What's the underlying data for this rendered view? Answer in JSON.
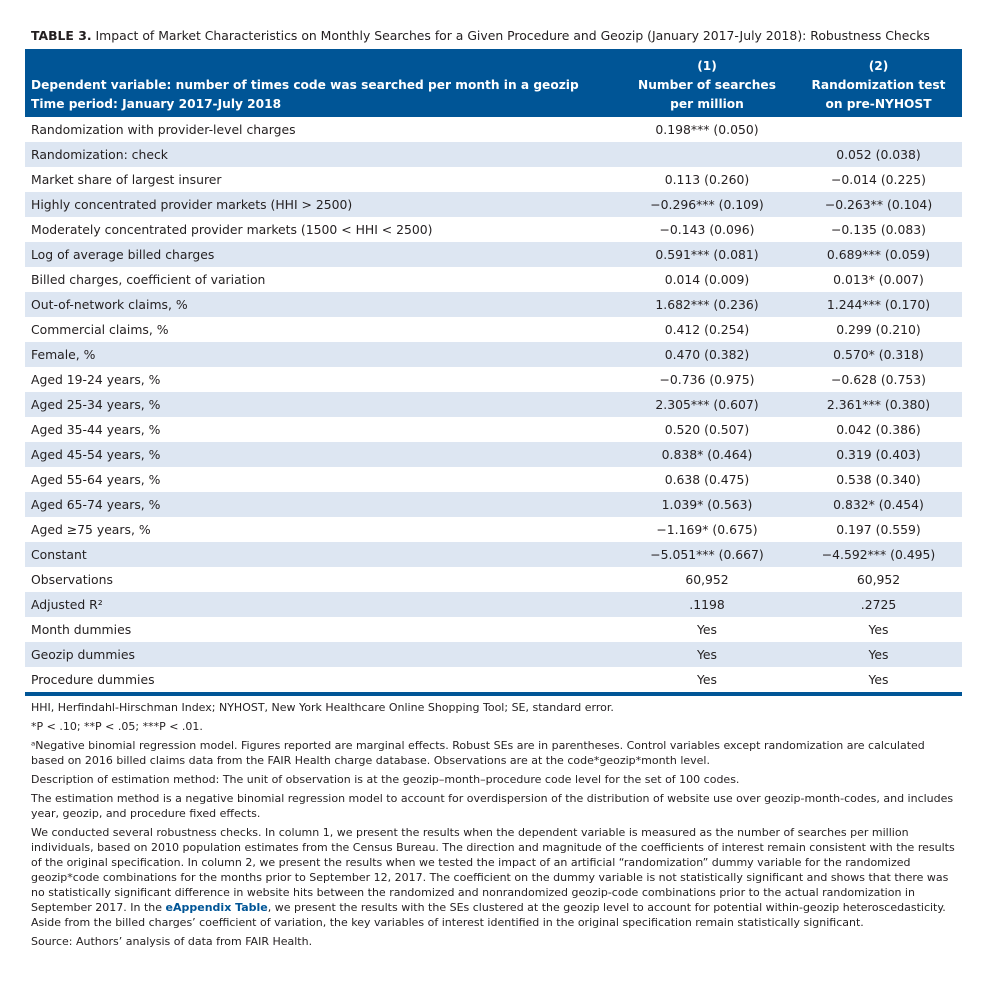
{
  "caption": {
    "label": "TABLE 3.",
    "text": "Impact of Market Characteristics on Monthly Searches for a Given Procedure and Geozip (January 2017-July 2018): Robustness Checks"
  },
  "header": {
    "dependent_variable": "Dependent variable: number of times code was searched per month in a geozip",
    "time_period": "Time period: January 2017-July 2018",
    "columns": [
      {
        "number": "(1)",
        "line1": "Number of searches",
        "line2": "per million"
      },
      {
        "number": "(2)",
        "line1": "Randomization test",
        "line2": "on pre-NYHOST"
      }
    ]
  },
  "rows": [
    {
      "label": "Randomization with provider-level charges",
      "col1": "0.198*** (0.050)",
      "col2": ""
    },
    {
      "label": "Randomization: check",
      "col1": "",
      "col2": "0.052 (0.038)"
    },
    {
      "label": "Market share of largest insurer",
      "col1": "0.113 (0.260)",
      "col2": "−0.014 (0.225)"
    },
    {
      "label": "Highly concentrated provider markets (HHI > 2500)",
      "col1": "−0.296*** (0.109)",
      "col2": "−0.263** (0.104)"
    },
    {
      "label": "Moderately concentrated provider markets (1500 < HHI < 2500)",
      "col1": "−0.143 (0.096)",
      "col2": "−0.135 (0.083)"
    },
    {
      "label": "Log of average billed charges",
      "col1": "0.591*** (0.081)",
      "col2": "0.689*** (0.059)"
    },
    {
      "label": "Billed charges, coefficient of variation",
      "col1": "0.014 (0.009)",
      "col2": "0.013* (0.007)"
    },
    {
      "label": "Out-of-network claims, %",
      "col1": "1.682*** (0.236)",
      "col2": "1.244*** (0.170)"
    },
    {
      "label": "Commercial claims, %",
      "col1": "0.412 (0.254)",
      "col2": "0.299 (0.210)"
    },
    {
      "label": "Female, %",
      "col1": "0.470 (0.382)",
      "col2": "0.570* (0.318)"
    },
    {
      "label": "Aged 19-24 years, %",
      "col1": "−0.736 (0.975)",
      "col2": "−0.628 (0.753)"
    },
    {
      "label": "Aged 25-34 years, %",
      "col1": "2.305*** (0.607)",
      "col2": "2.361*** (0.380)"
    },
    {
      "label": "Aged 35-44 years, %",
      "col1": "0.520 (0.507)",
      "col2": "0.042 (0.386)"
    },
    {
      "label": "Aged 45-54 years, %",
      "col1": "0.838* (0.464)",
      "col2": "0.319 (0.403)"
    },
    {
      "label": "Aged 55-64 years, %",
      "col1": "0.638 (0.475)",
      "col2": "0.538 (0.340)"
    },
    {
      "label": "Aged 65-74 years, %",
      "col1": "1.039* (0.563)",
      "col2": "0.832* (0.454)"
    },
    {
      "label": "Aged ≥75 years, %",
      "col1": "−1.169* (0.675)",
      "col2": "0.197 (0.559)"
    },
    {
      "label": "Constant",
      "col1": "−5.051*** (0.667)",
      "col2": "−4.592*** (0.495)"
    },
    {
      "label": "Observations",
      "col1": "60,952",
      "col2": "60,952"
    },
    {
      "label": "Adjusted R²",
      "col1": ".1198",
      "col2": ".2725"
    },
    {
      "label": "Month dummies",
      "col1": "Yes",
      "col2": "Yes"
    },
    {
      "label": "Geozip dummies",
      "col1": "Yes",
      "col2": "Yes"
    },
    {
      "label": "Procedure dummies",
      "col1": "Yes",
      "col2": "Yes"
    }
  ],
  "notes": {
    "abbreviations": "HHI, Herfindahl-Hirschman Index; NYHOST, New York Healthcare Online Shopping Tool; SE, standard error.",
    "significance": "*P < .10; **P < .05; ***P < .01.",
    "model": "ᵃNegative binomial regression model. Figures reported are marginal effects. Robust SEs are in parentheses. Control variables except randomization are calculated based on 2016 billed claims data from the FAIR Health charge database. Observations are at the code*geozip*month level.",
    "description": "Description of estimation method: The unit of observation is at the geozip–month–procedure code level for the set of 100 codes.",
    "estimation": "The estimation method is a negative binomial regression model to account for overdispersion of the distribution of website use over geozip-month-codes, and includes year, geozip, and procedure fixed effects.",
    "robustness_before": "We conducted several robustness checks. In column 1, we present the results when the dependent variable is measured as the number of searches per million individuals, based on 2010 population estimates from the Census Bureau. The direction and magnitude of the coefficients of interest remain consistent with the results of the original specification. In column 2, we present the results when we tested the impact of an artificial “randomization” dummy variable for the randomized geozip*code combinations for the months prior to September 12, 2017. The coefficient on the dummy variable is not statistically significant and shows that there was no statistically significant difference in website hits between the randomized and nonrandomized geozip-code combinations prior to the actual randomization in September 2017. In the ",
    "robustness_link": "eAppendix Table",
    "robustness_after": ", we present the results with the SEs clustered at the geozip level to account for potential within-geozip heteroscedasticity. Aside from the billed charges’ coefficient of variation, the key variables of interest identified in the original specification remain statistically significant.",
    "source": "Source: Authors’ analysis of data from FAIR Health."
  }
}
